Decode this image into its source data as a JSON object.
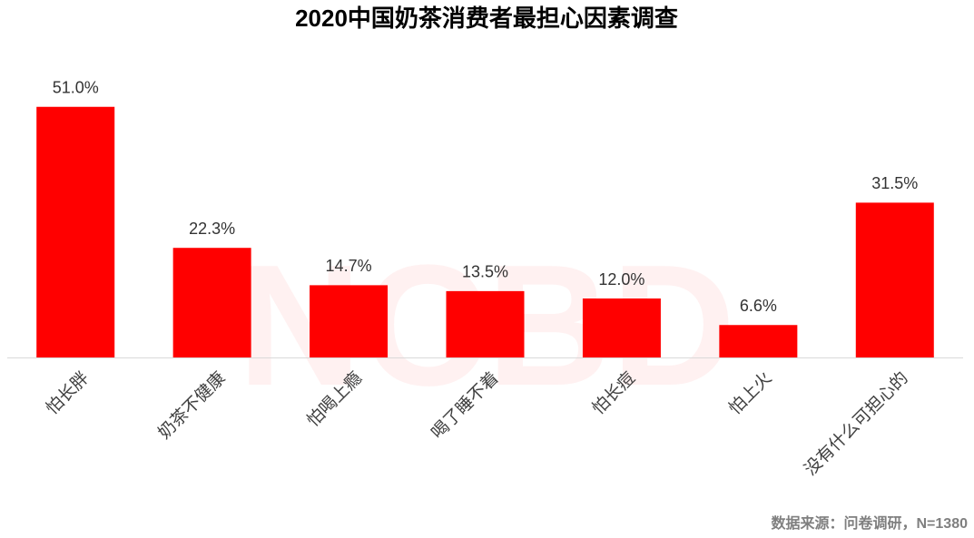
{
  "chart_data": {
    "type": "bar",
    "title": "2020中国奶茶消费者最担心因素调查",
    "categories": [
      "怕长胖",
      "奶茶不健康",
      "怕喝上瘾",
      "喝了睡不着",
      "怕长痘",
      "怕上火",
      "没有什么可担心的"
    ],
    "values": [
      51.0,
      22.3,
      14.7,
      13.5,
      12.0,
      6.6,
      31.5
    ],
    "value_labels": [
      "51.0%",
      "22.3%",
      "14.7%",
      "13.5%",
      "12.0%",
      "6.6%",
      "31.5%"
    ],
    "color": "#ff0000",
    "ylim": [
      0,
      60
    ],
    "watermark": "NCBD",
    "source": "数据来源：问卷调研，N=1380"
  }
}
